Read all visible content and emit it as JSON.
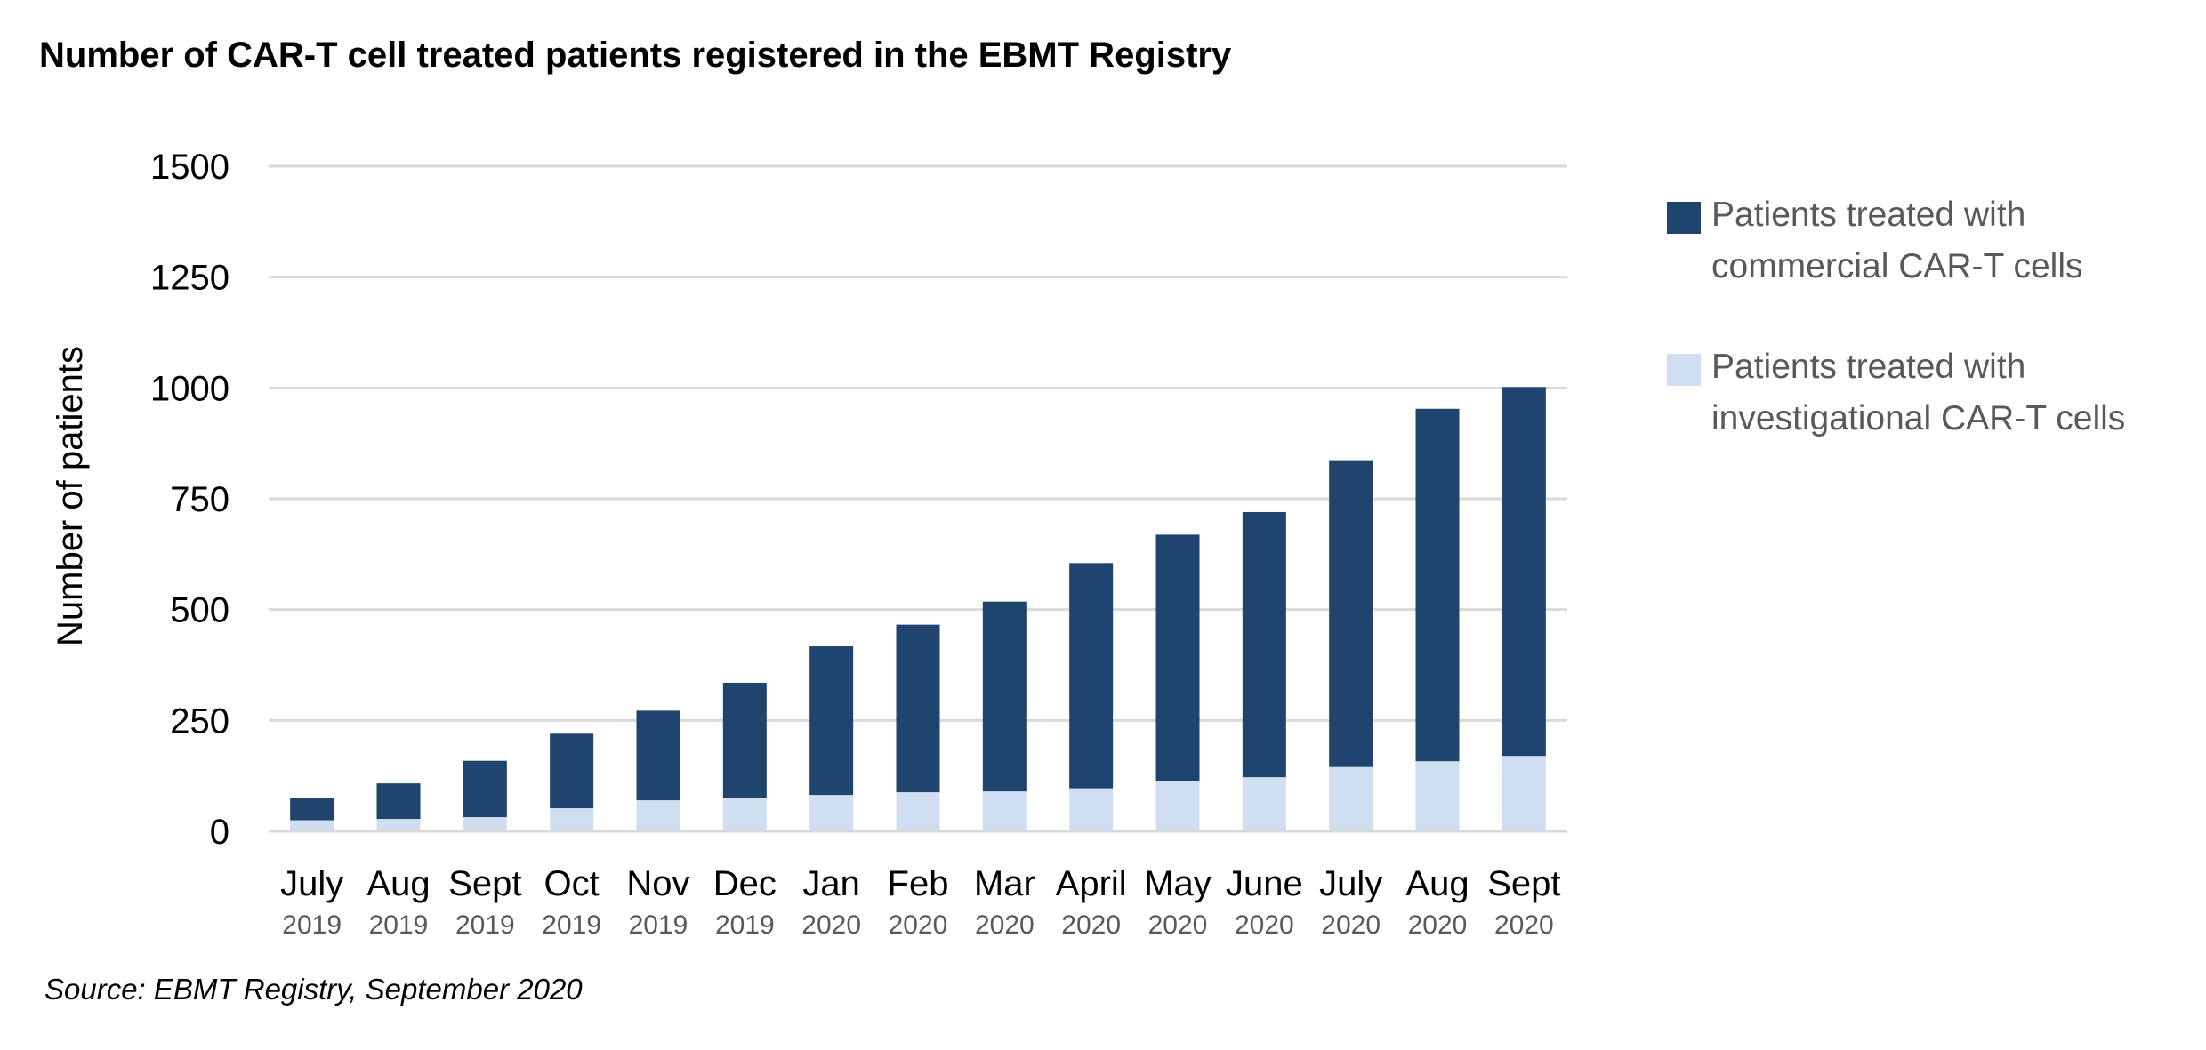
{
  "chart_data": {
    "type": "bar",
    "stacked": true,
    "title": "Number of CAR-T cell treated patients registered in the EBMT Registry",
    "ylabel": "Number of patients",
    "xlabel": "",
    "ylim": [
      0,
      1500
    ],
    "yticks": [
      0,
      250,
      500,
      750,
      1000,
      1250,
      1500
    ],
    "grid": true,
    "legend_position": "right",
    "categories": [
      {
        "month": "July",
        "year": "2019"
      },
      {
        "month": "Aug",
        "year": "2019"
      },
      {
        "month": "Sept",
        "year": "2019"
      },
      {
        "month": "Oct",
        "year": "2019"
      },
      {
        "month": "Nov",
        "year": "2019"
      },
      {
        "month": "Dec",
        "year": "2019"
      },
      {
        "month": "Jan",
        "year": "2020"
      },
      {
        "month": "Feb",
        "year": "2020"
      },
      {
        "month": "Mar",
        "year": "2020"
      },
      {
        "month": "April",
        "year": "2020"
      },
      {
        "month": "May",
        "year": "2020"
      },
      {
        "month": "June",
        "year": "2020"
      },
      {
        "month": "July",
        "year": "2020"
      },
      {
        "month": "Aug",
        "year": "2020"
      },
      {
        "month": "Sept",
        "year": "2020"
      }
    ],
    "series": [
      {
        "name": "Patients treated with investigational CAR-T cells",
        "color": "#cfdff1",
        "values": [
          25,
          28,
          32,
          52,
          70,
          75,
          82,
          88,
          90,
          97,
          113,
          122,
          145,
          158,
          170
        ]
      },
      {
        "name": "Patients treated with commercial CAR-T cells",
        "color": "#1f446e",
        "values": [
          50,
          80,
          127,
          168,
          202,
          260,
          335,
          378,
          428,
          508,
          556,
          598,
          692,
          795,
          832
        ]
      }
    ]
  },
  "legend": [
    {
      "label": "Patients treated with commercial CAR-T cells",
      "color": "#1f446e"
    },
    {
      "label": "Patients treated with investigational CAR-T cells",
      "color": "#cfdff1"
    }
  ],
  "source": "Source:  EBMT Registry, September 2020"
}
